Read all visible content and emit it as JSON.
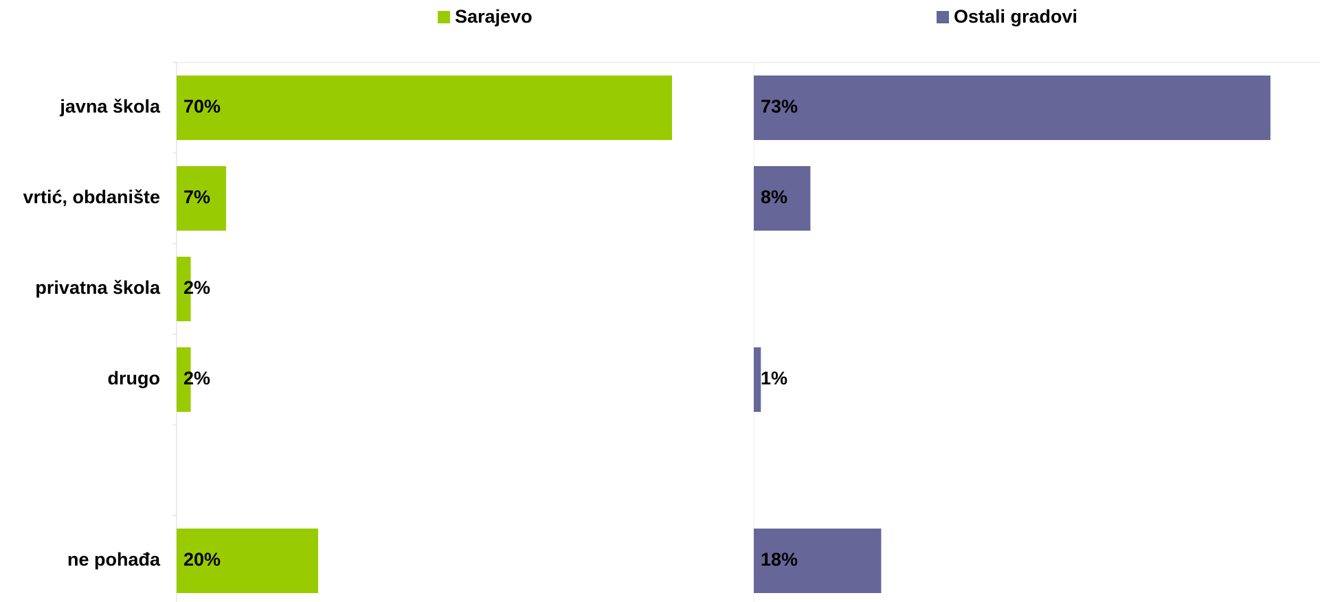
{
  "chart_data": {
    "type": "bar",
    "orientation": "horizontal",
    "categories": [
      "javna škola",
      "vrtić, obdanište",
      "privatna škola",
      "drugo",
      null,
      "ne pohađa"
    ],
    "series": [
      {
        "name": "Sarajevo",
        "color": "#99cc00",
        "values": [
          70,
          7,
          2,
          2,
          null,
          20
        ],
        "value_labels": [
          "70%",
          "7%",
          "2%",
          "2%",
          null,
          "20%"
        ]
      },
      {
        "name": "Ostali gradovi",
        "color": "#666699",
        "values": [
          73,
          8,
          null,
          1,
          null,
          18
        ],
        "value_labels": [
          "73%",
          "8%",
          null,
          "1%",
          null,
          "18%"
        ]
      }
    ],
    "xlim": [
      0,
      80
    ]
  }
}
